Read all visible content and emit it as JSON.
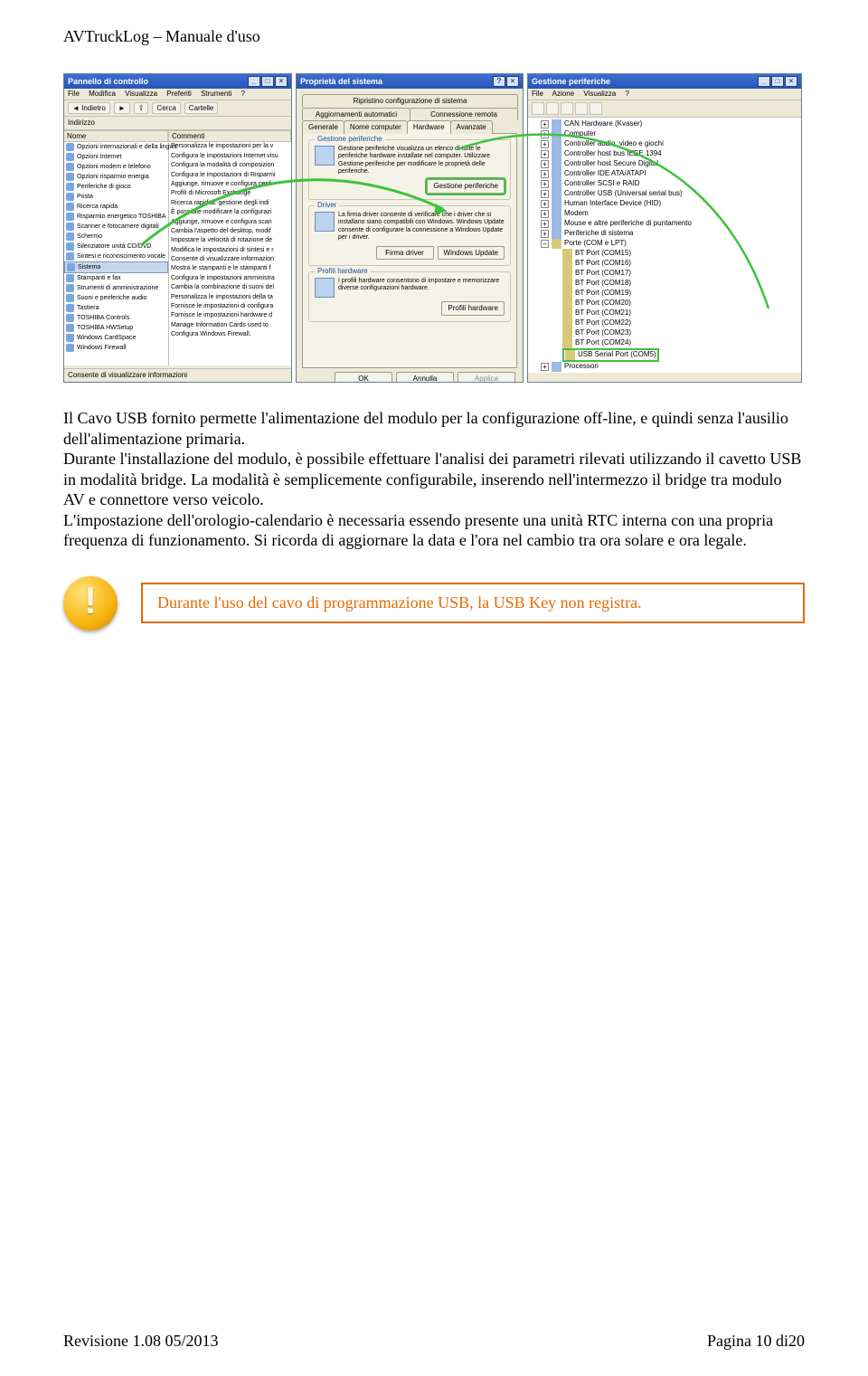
{
  "header": {
    "title": "AVTruckLog – Manuale d'uso"
  },
  "control_panel": {
    "title": "Pannello di controllo",
    "menus": [
      "File",
      "Modifica",
      "Visualizza",
      "Preferiti",
      "Strumenti",
      "?"
    ],
    "back": "Indietro",
    "search": "Cerca",
    "folders": "Cartelle",
    "address_label": "Indirizzo",
    "col_name": "Nome",
    "col_comment": "Commenti",
    "left_items": [
      "Opzioni internazionali e della lingua",
      "Opzioni Internet",
      "Opzioni modem e telefono",
      "Opzioni risparmio energia",
      "Periferiche di gioco",
      "Posta",
      "Ricerca rapida",
      "Risparmio energetico TOSHIBA",
      "Scanner e fotocamere digitali",
      "Schermo",
      "Silenziatore unità CD/DVD",
      "Sintesi e riconoscimento vocale",
      "Sistema",
      "Stampanti e fax",
      "Strumenti di amministrazione",
      "Suoni e periferiche audio",
      "Tastiera",
      "TOSHIBA Controls",
      "TOSHIBA HWSetup",
      "Windows CardSpace",
      "Windows Firewall"
    ],
    "right_items": [
      "Personalizza le impostazioni per la v",
      "Configura le impostazioni Internet visu",
      "Configura la modalità di composizion",
      "Configura le impostazioni di Risparmi",
      "Aggiunge, rimuove e configura perif",
      "Profili di Microsoft Exchange",
      "Ricerca rapidità: gestione degli indi",
      "È possibile modificare la configurazi",
      "Aggiunge, rimuove e configura scan",
      "Cambia l'aspetto del desktop, modif",
      "Impostare la velocità di rotazione de",
      "Modifica le impostazioni di sintesi e r",
      "Consente di visualizzare informazion",
      "Mostra le stampanti e le stampanti f",
      "Configura le impostazioni amministra",
      "Cambia la combinazione di suoni del",
      "Personalizza le impostazioni della ta",
      "Fornisce le impostazioni di configura",
      "Fornisce le impostazioni hardware d",
      "Manage Information Cards used to",
      "Configura Windows Firewall."
    ],
    "status": "Consente di visualizzare informazioni"
  },
  "system_properties": {
    "title": "Proprietà del sistema",
    "tabs_row1": [
      "Ripristino configurazione di sistema",
      "Aggiornamenti automatici",
      "Connessione remota"
    ],
    "tabs_row2": [
      "Generale",
      "Nome computer",
      "Hardware",
      "Avanzate"
    ],
    "active_tab": "Hardware",
    "fieldsets": {
      "devmgr": {
        "legend": "Gestione periferiche",
        "text": "Gestione periferiche visualizza un elenco di tutte le periferiche hardware installate nel computer. Utilizzare Gestione periferiche per modificare le proprietà delle periferiche.",
        "btn": "Gestione periferiche"
      },
      "drivers": {
        "legend": "Driver",
        "text": "La firma driver consente di verificare che i driver che si installano siano compatibili con Windows. Windows Update consente di configurare la connessione a Windows Update per i driver.",
        "btn1": "Firma driver",
        "btn2": "Windows Update"
      },
      "profiles": {
        "legend": "Profili hardware",
        "text": "I profili hardware consentono di impostare e memorizzare diverse configurazioni hardware.",
        "btn": "Profili hardware"
      }
    },
    "footer": {
      "ok": "OK",
      "cancel": "Annulla",
      "apply": "Applica"
    }
  },
  "device_manager": {
    "title": "Gestione periferiche",
    "menus": [
      "File",
      "Azione",
      "Visualizza",
      "?"
    ],
    "nodes_top": [
      "CAN Hardware (Kvaser)",
      "Computer",
      "Controller audio, video e giochi",
      "Controller host bus IEEE 1394",
      "Controller host Secure Digital",
      "Controller IDE ATA/ATAPI",
      "Controller SCSI e RAID",
      "Controller USB (Universal serial bus)",
      "Human Interface Device (HID)",
      "Modem",
      "Mouse e altre periferiche di puntamento",
      "Periferiche di sistema"
    ],
    "ports_label": "Porte (COM e LPT)",
    "ports": [
      "BT Port (COM15)",
      "BT Port (COM16)",
      "BT Port (COM17)",
      "BT Port (COM18)",
      "BT Port (COM19)",
      "BT Port (COM20)",
      "BT Port (COM21)",
      "BT Port (COM22)",
      "BT Port (COM23)",
      "BT Port (COM24)"
    ],
    "highlight": "USB Serial Port (COM5)",
    "last": "Processori"
  },
  "body": {
    "p1": "Il Cavo USB fornito permette l'alimentazione del modulo per la configurazione off-line, e quindi senza l'ausilio dell'alimentazione primaria.",
    "p2": "Durante l'installazione del modulo, è possibile effettuare l'analisi dei parametri rilevati utilizzando il cavetto USB in modalità bridge. La modalità è semplicemente configurabile, inserendo nell'intermezzo il bridge tra modulo AV e connettore verso veicolo.",
    "p3": "L'impostazione dell'orologio-calendario è necessaria essendo presente una unità RTC interna con una propria frequenza di funzionamento. Si ricorda di aggiornare la data e l'ora nel cambio tra ora solare e ora legale."
  },
  "alert": {
    "text": "Durante l'uso del cavo di programmazione USB, la USB Key non registra."
  },
  "footer": {
    "left": "Revisione 1.08 05/2013",
    "right": "Pagina 10 di20"
  },
  "colors": {
    "green_highlight": "#3ec23e"
  }
}
